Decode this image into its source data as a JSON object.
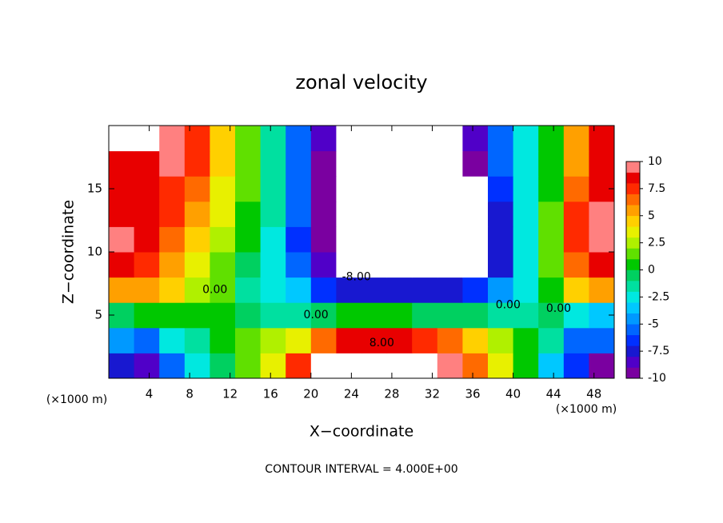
{
  "chart_data": {
    "type": "contour",
    "title": "zonal velocity",
    "xlabel": "X−coordinate",
    "ylabel": "Z−coordinate",
    "unit_label": "(×1000 m)",
    "footer": "CONTOUR INTERVAL = 4.000E+00",
    "xlim": [
      0,
      50
    ],
    "ylim": [
      0,
      20
    ],
    "xticks": [
      4,
      8,
      12,
      16,
      20,
      24,
      28,
      32,
      36,
      40,
      44,
      48
    ],
    "yticks": [
      5,
      10,
      15
    ],
    "x": [
      1.25,
      3.75,
      6.25,
      8.75,
      11.25,
      13.75,
      16.25,
      18.75,
      21.25,
      23.75,
      26.25,
      28.75,
      31.25,
      33.75,
      36.25,
      38.75,
      41.25,
      43.75,
      46.25,
      48.75
    ],
    "y": [
      1,
      3,
      5,
      7,
      9,
      11,
      13,
      15,
      17,
      19
    ],
    "z": [
      [
        -8,
        -9,
        -6,
        -3,
        -1,
        1,
        3,
        7,
        11,
        12,
        12,
        12,
        11,
        9,
        6,
        3,
        0,
        -4,
        -7,
        -10
      ],
      [
        -5,
        -6,
        -3,
        -2,
        0,
        1,
        2,
        3,
        6,
        8,
        8,
        8,
        7,
        6,
        4,
        2,
        0,
        -2,
        -6,
        -6
      ],
      [
        -1,
        0,
        0,
        0,
        0,
        -1,
        -2,
        -2,
        -1,
        0,
        0,
        0,
        -1,
        -1,
        -1,
        -2,
        -2,
        -1,
        -3,
        -4
      ],
      [
        5,
        5,
        4,
        2,
        1,
        -2,
        -3,
        -4,
        -7,
        -8,
        -8,
        -8,
        -8,
        -8,
        -7,
        -5,
        -3,
        0,
        4,
        5
      ],
      [
        8,
        7,
        5,
        3,
        1,
        -1,
        -3,
        -6,
        -9,
        -11,
        -12,
        -12,
        -12,
        -12,
        -11,
        -8,
        -3,
        1,
        6,
        8
      ],
      [
        9,
        8,
        6,
        4,
        2,
        0,
        -3,
        -7,
        -10,
        -12,
        -12,
        -12,
        -12,
        -12,
        -12,
        -8,
        -3,
        1,
        7,
        9
      ],
      [
        8,
        8,
        7,
        5,
        3,
        0,
        -2,
        -6,
        -10,
        -12,
        -12,
        -12,
        -12,
        -12,
        -12,
        -8,
        -3,
        1,
        7,
        9
      ],
      [
        8,
        8,
        7,
        6,
        3,
        1,
        -2,
        -6,
        -10,
        -12,
        -12,
        -12,
        -12,
        -12,
        -11,
        -7,
        -3,
        0,
        6,
        8
      ],
      [
        8,
        8,
        9,
        7,
        4,
        1,
        -2,
        -6,
        -10,
        -12,
        -12,
        -12,
        -12,
        -12,
        -10,
        -6,
        -3,
        0,
        5,
        8
      ],
      [
        11,
        11,
        10,
        7,
        4,
        1,
        -2,
        -6,
        -9,
        -12,
        -12,
        -12,
        -12,
        -12,
        -9,
        -6,
        -3,
        0,
        5,
        8
      ]
    ],
    "zlim": [
      -10,
      10
    ],
    "zticks": [
      10,
      7.5,
      5,
      2.5,
      0,
      -2.5,
      -5,
      -7.5,
      -10
    ],
    "colors": [
      "#7a00a0",
      "#5000c8",
      "#1818d0",
      "#0030ff",
      "#0066ff",
      "#0099ff",
      "#00c8ff",
      "#00e8e0",
      "#00e0a0",
      "#00d060",
      "#00c800",
      "#60e000",
      "#b0f000",
      "#e8f000",
      "#ffd000",
      "#ffa000",
      "#ff6a00",
      "#ff2a00",
      "#e80000",
      "#ff8080"
    ],
    "extend_color": "#ffffff",
    "annotations": [
      {
        "text": "0.00",
        "x": 10.5,
        "y": 7
      },
      {
        "text": "-8.00",
        "x": 24.5,
        "y": 8
      },
      {
        "text": "0.00",
        "x": 20.5,
        "y": 5
      },
      {
        "text": "8.00",
        "x": 27,
        "y": 2.8
      },
      {
        "text": "0.00",
        "x": 39.5,
        "y": 5.8
      },
      {
        "text": "0.00",
        "x": 44.5,
        "y": 5.5
      }
    ]
  }
}
